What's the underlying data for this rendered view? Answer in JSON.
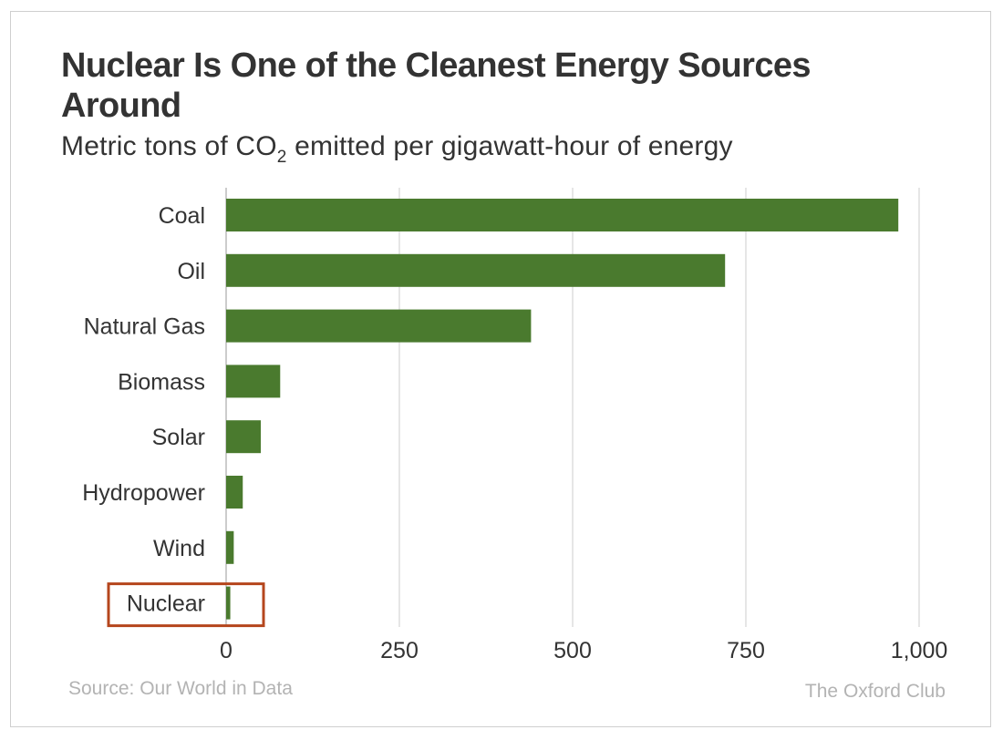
{
  "chart_data": {
    "type": "bar",
    "orientation": "horizontal",
    "title": "Nuclear Is One of the Cleanest Energy Sources Around",
    "subtitle": {
      "before": "Metric tons of CO",
      "sub": "2",
      "after": " emitted per gigawatt-hour of energy"
    },
    "categories": [
      "Coal",
      "Oil",
      "Natural Gas",
      "Biomass",
      "Solar",
      "Hydropower",
      "Wind",
      "Nuclear"
    ],
    "values": [
      970,
      720,
      440,
      78,
      50,
      24,
      11,
      6
    ],
    "xlim": [
      0,
      1000
    ],
    "xticks": [
      0,
      250,
      500,
      750,
      1000
    ],
    "xtick_labels": [
      "0",
      "250",
      "500",
      "750",
      "1,000"
    ],
    "grid": true,
    "bar_color": "#4a7a2e",
    "highlight": {
      "category": "Nuclear",
      "color": "#b5461d"
    },
    "source": "Source: Our World in Data",
    "brand": "The Oxford Club"
  }
}
